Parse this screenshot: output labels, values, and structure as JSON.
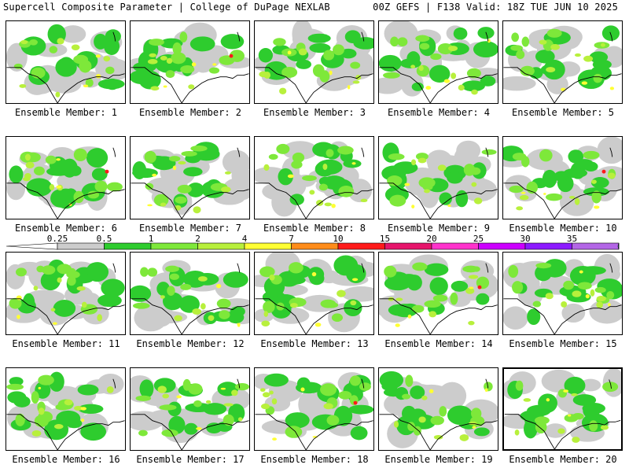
{
  "header": {
    "left_title": "Supercell Composite Parameter | College of DuPage NEXLAB",
    "right_title": "00Z GEFS | F138 Valid: 18Z TUE JUN 10 2025"
  },
  "colorbar": {
    "ticks": [
      "0.25",
      "0.5",
      "1",
      "2",
      "4",
      "7",
      "10",
      "15",
      "20",
      "25",
      "30",
      "35"
    ],
    "colors": [
      "#cccccc",
      "#2ecc2e",
      "#7ee83a",
      "#b8f03c",
      "#ffff33",
      "#ff8c1a",
      "#ff1a1a",
      "#e6156b",
      "#ff33cc",
      "#cc00ff",
      "#8c1aff",
      "#b366e6",
      "#33e6e6"
    ],
    "outline_color": "#000000"
  },
  "panels": [
    {
      "label": "Ensemble Member: 1"
    },
    {
      "label": "Ensemble Member: 2"
    },
    {
      "label": "Ensemble Member: 3"
    },
    {
      "label": "Ensemble Member: 4"
    },
    {
      "label": "Ensemble Member: 5"
    },
    {
      "label": "Ensemble Member: 6"
    },
    {
      "label": "Ensemble Member: 7"
    },
    {
      "label": "Ensemble Member: 8"
    },
    {
      "label": "Ensemble Member: 9"
    },
    {
      "label": "Ensemble Member: 10"
    },
    {
      "label": "Ensemble Member: 11"
    },
    {
      "label": "Ensemble Member: 12"
    },
    {
      "label": "Ensemble Member: 13"
    },
    {
      "label": "Ensemble Member: 14"
    },
    {
      "label": "Ensemble Member: 15"
    },
    {
      "label": "Ensemble Member: 16"
    },
    {
      "label": "Ensemble Member: 17"
    },
    {
      "label": "Ensemble Member: 18"
    },
    {
      "label": "Ensemble Member: 19"
    },
    {
      "label": "Ensemble Member: 20"
    }
  ]
}
